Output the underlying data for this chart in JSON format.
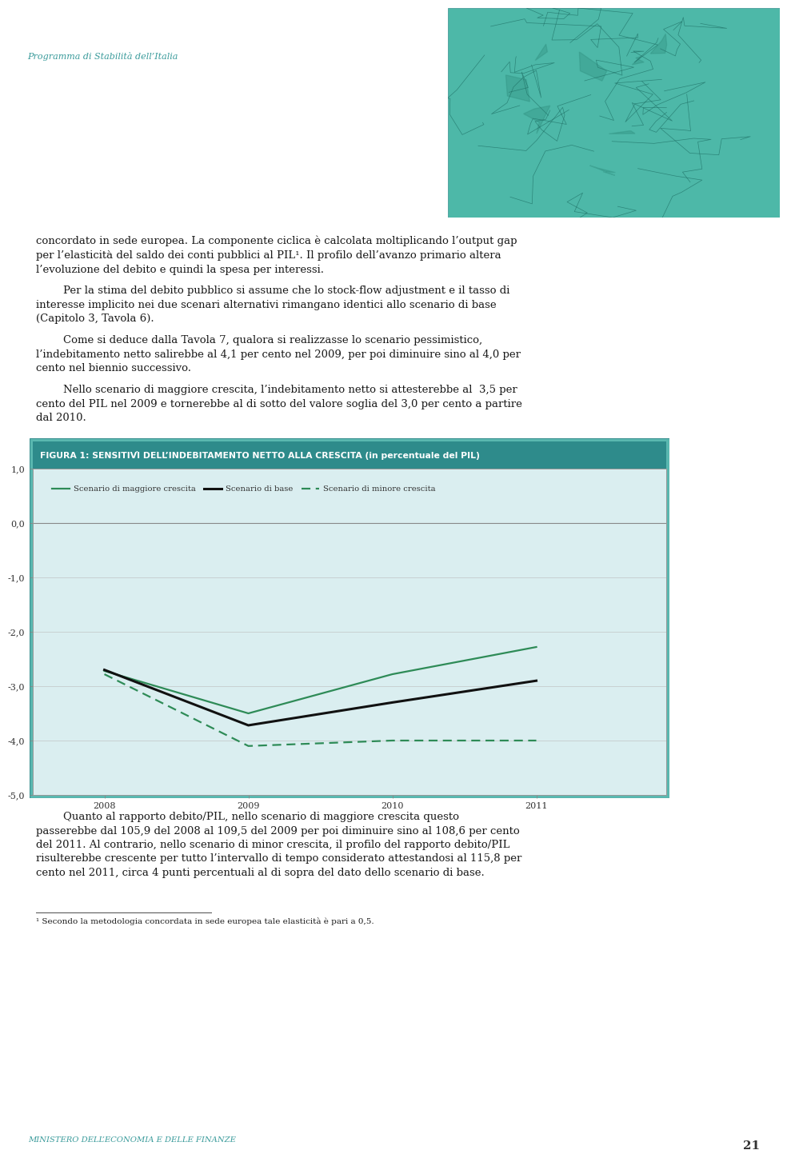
{
  "page_bg": "#ffffff",
  "header_text": "Programma di Stabilità dell’Italia",
  "header_color": "#3a9b9b",
  "map_bg": "#4db8a8",
  "body_color": "#1a1a1a",
  "body_fontsize": 9.5,
  "figure_outer_bg": "#5ab8b0",
  "figure_title_bg": "#2e8b8b",
  "figure_title_text": "FIGURA 1: SENSITIVÌ DELL’INDEBITAMENTO NETTO ALLA CRESCITA (in percentuale del PIL)",
  "figure_title_color": "#ffffff",
  "chart_bg": "#daeef0",
  "years": [
    2008,
    2009,
    2010,
    2011
  ],
  "scenario_base": [
    -2.7,
    -3.72,
    -3.3,
    -2.9
  ],
  "scenario_maggiore": [
    -2.72,
    -3.5,
    -2.78,
    -2.28
  ],
  "scenario_minore": [
    -2.78,
    -4.1,
    -4.0,
    -4.0
  ],
  "ylim": [
    -5.0,
    1.0
  ],
  "yticks": [
    1.0,
    0.0,
    -1.0,
    -2.0,
    -3.0,
    -4.0,
    -5.0
  ],
  "color_maggiore": "#2e8b57",
  "color_base": "#111111",
  "color_minore": "#2e8b57",
  "legend_maggiore": "Scenario di maggiore crescita",
  "legend_base": "Scenario di base",
  "legend_minore": "Scenario di minore crescita",
  "footer_text_left": "Ministero dell’Economia e delle Finanze",
  "footer_page": "21",
  "footer_color": "#3a9b9b",
  "footnote": "¹ Secondo la metodologia concordata in sede europea tale elasticità è pari a 0,5."
}
